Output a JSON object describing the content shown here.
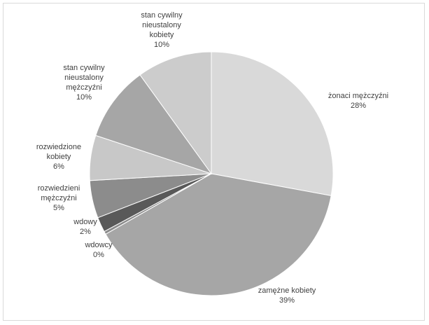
{
  "chart_data": {
    "type": "pie",
    "title": "",
    "slices": [
      {
        "label": "żonaci mężczyźni",
        "percent_label": "28%",
        "value": 28,
        "color": "#d9d9d9"
      },
      {
        "label": "zamężne kobiety",
        "percent_label": "39%",
        "value": 39,
        "color": "#a6a6a6"
      },
      {
        "label": "wdowcy",
        "percent_label": "0%",
        "value": 0.4,
        "color": "#8c8c8c"
      },
      {
        "label": "wdowy",
        "percent_label": "2%",
        "value": 2,
        "color": "#595959"
      },
      {
        "label": "rozwiedzieni mężczyźni",
        "percent_label": "5%",
        "value": 5,
        "color": "#8c8c8c"
      },
      {
        "label": "rozwiedzione kobiety",
        "percent_label": "6%",
        "value": 6,
        "color": "#c8c8c8"
      },
      {
        "label": "stan cywilny nieustalony mężczyźni",
        "percent_label": "10%",
        "value": 10,
        "color": "#a6a6a6"
      },
      {
        "label": "stan cywilny nieustalony kobiety",
        "percent_label": "10%",
        "value": 10,
        "color": "#cccccc"
      }
    ],
    "legend": "none",
    "data_labels": "outside"
  }
}
